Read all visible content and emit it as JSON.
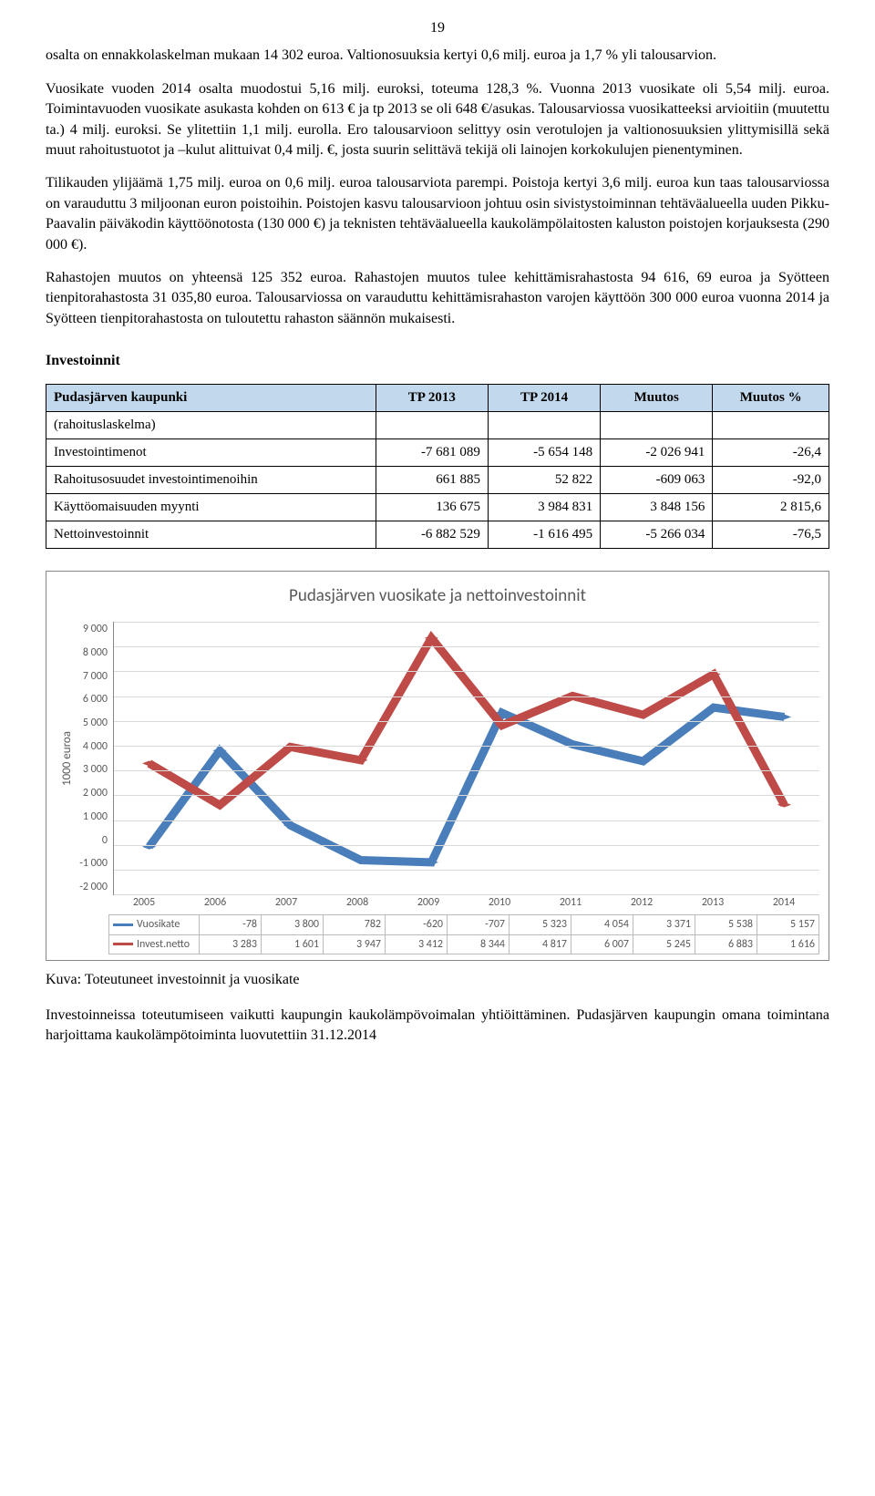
{
  "page_number": "19",
  "para1": "osalta on ennakkolaskelman mukaan 14 302 euroa. Valtionosuuksia kertyi 0,6 milj. euroa ja 1,7 % yli talousarvion.",
  "para2": "Vuosikate vuoden 2014 osalta muodostui 5,16 milj. euroksi, toteuma 128,3 %. Vuonna 2013 vuosikate oli 5,54 milj. euroa. Toimintavuoden vuosikate asukasta kohden on 613 € ja tp 2013 se oli 648 €/asukas. Talousarviossa vuosikatteeksi arvioitiin (muutettu ta.) 4 milj. euroksi. Se ylitettiin 1,1 milj. eurolla. Ero talousarvioon selittyy osin verotulojen ja valtionosuuksien ylittymisillä sekä muut rahoitustuotot ja –kulut alittuivat 0,4 milj. €, josta suurin selittävä tekijä oli lainojen korkokulujen pienentyminen.",
  "para3": "Tilikauden ylijäämä 1,75 milj. euroa on 0,6 milj. euroa talousarviota parempi. Poistoja kertyi 3,6 milj. euroa kun taas talousarviossa on varauduttu 3 miljoonan euron poistoihin. Poistojen kasvu talousarvioon johtuu osin sivistystoiminnan tehtäväalueella uuden Pikku-Paavalin päiväkodin käyttöönotosta (130 000 €) ja teknisten tehtäväalueella kaukolämpölaitosten kaluston poistojen korjauksesta (290 000 €).",
  "para4": "Rahastojen muutos on yhteensä 125 352 euroa. Rahastojen muutos tulee kehittämisrahastosta 94 616, 69 euroa ja Syötteen tienpitorahastosta 31 035,80 euroa. Talousarviossa on varauduttu kehittämisrahaston varojen käyttöön 300 000 euroa vuonna 2014 ja Syötteen tienpitorahastosta on tuloutettu rahaston säännön mukaisesti.",
  "section_title": "Investoinnit",
  "table": {
    "header": [
      "Pudasjärven kaupunki",
      "TP 2013",
      "TP 2014",
      "Muutos",
      "Muutos %"
    ],
    "rows": [
      [
        "(rahoituslaskelma)",
        "",
        "",
        "",
        ""
      ],
      [
        "Investointimenot",
        "-7 681 089",
        "-5 654 148",
        "-2 026 941",
        "-26,4"
      ],
      [
        "Rahoitusosuudet investointimenoihin",
        "661 885",
        "52 822",
        "-609 063",
        "-92,0"
      ],
      [
        "Käyttöomaisuuden myynti",
        "136 675",
        "3 984 831",
        "3 848 156",
        "2 815,6"
      ],
      [
        "Nettoinvestoinnit",
        "-6 882 529",
        "-1 616 495",
        "-5 266 034",
        "-76,5"
      ]
    ]
  },
  "chart": {
    "title": "Pudasjärven vuosikate ja nettoinvestoinnit",
    "ylabel": "1000 euroa",
    "ymin": -2000,
    "ymax": 9000,
    "ystep": 1000,
    "yticks": [
      "9 000",
      "8 000",
      "7 000",
      "6 000",
      "5 000",
      "4 000",
      "3 000",
      "2 000",
      "1 000",
      "0",
      "-1 000",
      "-2 000"
    ],
    "categories": [
      "2005",
      "2006",
      "2007",
      "2008",
      "2009",
      "2010",
      "2011",
      "2012",
      "2013",
      "2014"
    ],
    "series": [
      {
        "name": "Vuosikate",
        "color": "#4a7ebb",
        "values": [
          -78,
          3800,
          782,
          -620,
          -707,
          5323,
          4054,
          3371,
          5538,
          5157
        ],
        "display": [
          "-78",
          "3 800",
          "782",
          "-620",
          "-707",
          "5 323",
          "4 054",
          "3 371",
          "5 538",
          "5 157"
        ]
      },
      {
        "name": "Invest.netto",
        "color": "#be4b48",
        "values": [
          3283,
          1601,
          3947,
          3412,
          8344,
          4817,
          6007,
          5245,
          6883,
          1616
        ],
        "display": [
          "3 283",
          "1 601",
          "3 947",
          "3 412",
          "8 344",
          "4 817",
          "6 007",
          "5 245",
          "6 883",
          "1 616"
        ]
      }
    ]
  },
  "caption": "Kuva: Toteutuneet investoinnit ja vuosikate",
  "footer": "Investoinneissa toteutumiseen vaikutti kaupungin kaukolämpövoimalan yhtiöittäminen. Pudasjärven kaupungin omana toimintana harjoittama kaukolämpötoiminta luovutettiin 31.12.2014"
}
